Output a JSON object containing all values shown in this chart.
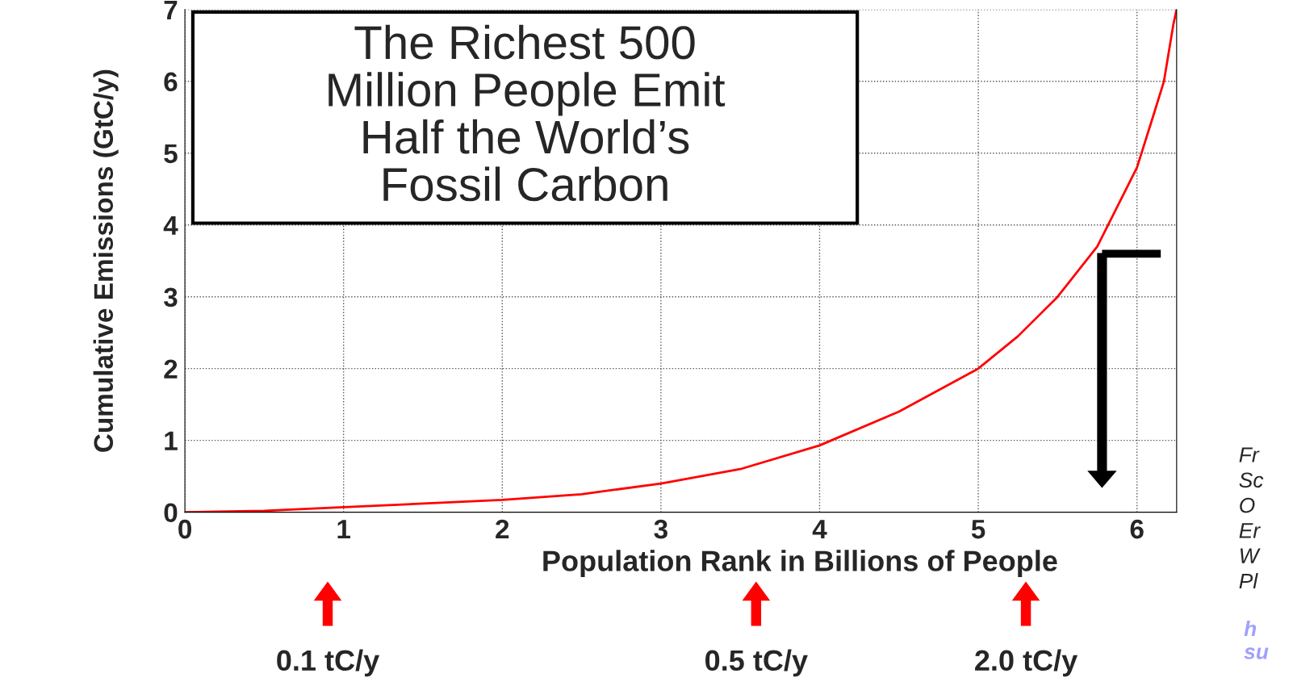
{
  "chart_data": {
    "type": "line",
    "title": "The Richest 500\nMillion People Emit\nHalf the World’s\nFossil Carbon",
    "xlabel": "Population Rank in Billions of People",
    "ylabel": "Cumulative Emissions (GtC/y)",
    "x": [
      0,
      0.5,
      1,
      1.5,
      2,
      2.5,
      3,
      3.5,
      4,
      4.5,
      5,
      5.25,
      5.5,
      5.75,
      6,
      6.1,
      6.17,
      6.23,
      6.25
    ],
    "series": [
      {
        "color": "#ff0000",
        "values": [
          0,
          0.02,
          0.07,
          0.12,
          0.17,
          0.25,
          0.4,
          0.6,
          0.93,
          1.4,
          2.0,
          2.45,
          3.0,
          3.7,
          4.8,
          5.5,
          6.0,
          6.8,
          7
        ]
      }
    ],
    "xlim": [
      0,
      6.25
    ],
    "ylim": [
      0,
      7
    ],
    "xticks": [
      0,
      1,
      2,
      3,
      4,
      5,
      6
    ],
    "yticks": [
      0,
      1,
      2,
      3,
      4,
      5,
      6,
      7
    ],
    "grid": true,
    "line_style": "solid",
    "marker": "none",
    "legend": false,
    "annotations": [
      "0.1 tC/y",
      "0.5 tC/y",
      "2.0 tC/y",
      "Fr\nSc\nO\nEr\nW\nPl",
      "h\nsu"
    ]
  }
}
